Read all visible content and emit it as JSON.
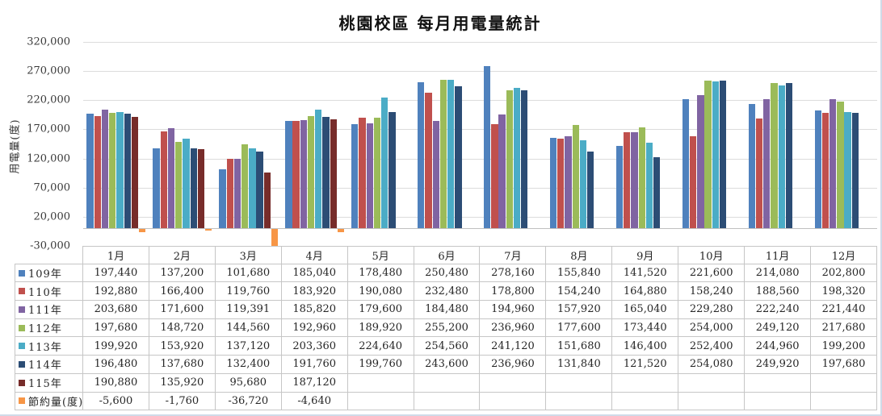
{
  "chart_data": {
    "type": "bar",
    "title": "桃園校區 每月用電量統計",
    "ylabel": "用電量(度)",
    "ylim": [
      -30000,
      320000
    ],
    "ytick_step": 50000,
    "grid": "horizontal",
    "legend_position": "data-table-left-column",
    "categories": [
      "1月",
      "2月",
      "3月",
      "4月",
      "5月",
      "6月",
      "7月",
      "8月",
      "9月",
      "10月",
      "11月",
      "12月"
    ],
    "series": [
      {
        "name": "109年",
        "color": "#4F81BD",
        "values": [
          197440,
          137200,
          101680,
          185040,
          178480,
          250480,
          278160,
          155840,
          141520,
          221600,
          214080,
          202800
        ]
      },
      {
        "name": "110年",
        "color": "#C0504D",
        "values": [
          192880,
          166400,
          119760,
          183920,
          190080,
          232480,
          178800,
          154240,
          164880,
          158240,
          188560,
          198320
        ]
      },
      {
        "name": "111年",
        "color": "#8064A2",
        "values": [
          203680,
          171600,
          119391,
          185820,
          179600,
          184480,
          194960,
          157920,
          165040,
          229280,
          222240,
          221440
        ]
      },
      {
        "name": "112年",
        "color": "#9BBB59",
        "values": [
          197680,
          148720,
          144560,
          192960,
          189920,
          255200,
          236960,
          177600,
          173440,
          254000,
          249120,
          217680
        ]
      },
      {
        "name": "113年",
        "color": "#4BACC6",
        "values": [
          199920,
          153920,
          137120,
          203360,
          224640,
          254560,
          241120,
          151680,
          146400,
          252400,
          244960,
          199200
        ]
      },
      {
        "name": "114年",
        "color": "#2C4D75",
        "values": [
          196480,
          137680,
          132400,
          191760,
          199760,
          243600,
          236960,
          131840,
          121520,
          254080,
          249920,
          197680
        ]
      },
      {
        "name": "115年",
        "color": "#772C2A",
        "values": [
          190880,
          135920,
          95680,
          187120,
          null,
          null,
          null,
          null,
          null,
          null,
          null,
          null
        ]
      },
      {
        "name": "節約量(度)",
        "color": "#F79646",
        "values": [
          -5600,
          -1760,
          -36720,
          -4640,
          null,
          null,
          null,
          null,
          null,
          null,
          null,
          null
        ]
      }
    ]
  }
}
